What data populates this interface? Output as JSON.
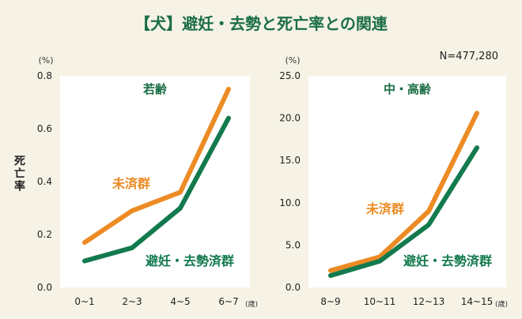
{
  "title": "【犬】避妊・去勢と死亡率との関連",
  "n_label": "N=477,280",
  "ylabel": "死亡率",
  "colors": {
    "unspayed": "#ec8b24",
    "spayed": "#137a4e",
    "panel_title": "#1b6e46"
  },
  "chart_data": [
    {
      "type": "line",
      "title": "若齢",
      "unit_label": "(%)",
      "x_unit_label": "(歳)",
      "categories": [
        "0~1",
        "2~3",
        "4~5",
        "6~7"
      ],
      "ylim": [
        0,
        0.8
      ],
      "yticks": [
        "0.0",
        "0.2",
        "0.4",
        "0.6",
        "0.8"
      ],
      "grid": false,
      "series": [
        {
          "name": "未済群",
          "values": [
            0.17,
            0.29,
            0.36,
            0.75
          ]
        },
        {
          "name": "避妊・去勢済群",
          "values": [
            0.1,
            0.15,
            0.3,
            0.64
          ]
        }
      ]
    },
    {
      "type": "line",
      "title": "中・高齢",
      "unit_label": "(%)",
      "x_unit_label": "(歳)",
      "categories": [
        "8~9",
        "10~11",
        "12~13",
        "14~15"
      ],
      "ylim": [
        0,
        25
      ],
      "yticks": [
        "0.0",
        "5.0",
        "10.0",
        "15.0",
        "20.0",
        "25.0"
      ],
      "grid": false,
      "series": [
        {
          "name": "未済群",
          "values": [
            2.0,
            3.6,
            9.0,
            20.6
          ]
        },
        {
          "name": "避妊・去勢済群",
          "values": [
            1.4,
            3.1,
            7.4,
            16.5
          ]
        }
      ]
    }
  ]
}
